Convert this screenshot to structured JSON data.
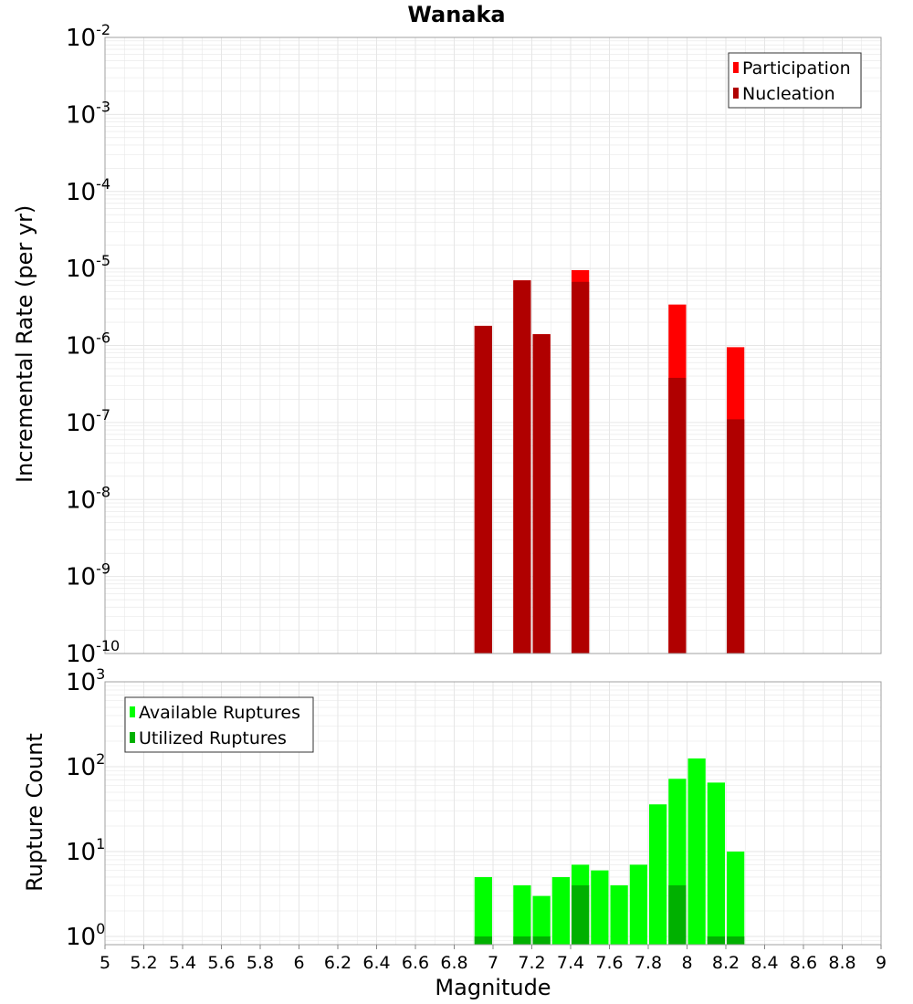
{
  "title": "Wanaka",
  "xlabel": "Magnitude",
  "x_ticks": [
    "5",
    "5.2",
    "5.4",
    "5.6",
    "5.8",
    "6",
    "6.2",
    "6.4",
    "6.6",
    "6.8",
    "7",
    "7.2",
    "7.4",
    "7.6",
    "7.8",
    "8",
    "8.2",
    "8.4",
    "8.6",
    "8.8",
    "9"
  ],
  "colors": {
    "participation": "#ff0000",
    "nucleation": "#b00000",
    "available": "#00ff00",
    "utilized": "#00b000",
    "grid": "#e6e6e6",
    "frame": "#a0a0a0"
  },
  "chart_data": [
    {
      "type": "bar",
      "ylabel": "Incremental Rate (per yr)",
      "yscale": "log",
      "ylim": [
        1e-10,
        0.01
      ],
      "xlim": [
        5,
        9
      ],
      "bin_width": 0.1,
      "grid": true,
      "y_ticks": [
        {
          "base": "10",
          "exp": "-10"
        },
        {
          "base": "10",
          "exp": "-9"
        },
        {
          "base": "10",
          "exp": "-8"
        },
        {
          "base": "10",
          "exp": "-7"
        },
        {
          "base": "10",
          "exp": "-6"
        },
        {
          "base": "10",
          "exp": "-5"
        },
        {
          "base": "10",
          "exp": "-4"
        },
        {
          "base": "10",
          "exp": "-3"
        },
        {
          "base": "10",
          "exp": "-2"
        }
      ],
      "legend": {
        "placement": "top-right",
        "entries": [
          "Participation",
          "Nucleation"
        ]
      },
      "series": [
        {
          "name": "Participation",
          "color": "participation",
          "x": [
            6.95,
            7.15,
            7.25,
            7.45,
            7.95,
            8.25
          ],
          "values": [
            1.8e-06,
            7e-06,
            1.4e-06,
            9.5e-06,
            3.4e-06,
            9.5e-07
          ]
        },
        {
          "name": "Nucleation",
          "color": "nucleation",
          "x": [
            6.95,
            7.15,
            7.25,
            7.45,
            7.95,
            8.25
          ],
          "values": [
            1.8e-06,
            7e-06,
            1.4e-06,
            6.7e-06,
            3.8e-07,
            1.1e-07
          ]
        }
      ]
    },
    {
      "type": "bar",
      "ylabel": "Rupture Count",
      "yscale": "log",
      "ylim": [
        0.8,
        1000
      ],
      "xlim": [
        5,
        9
      ],
      "bin_width": 0.1,
      "grid": true,
      "y_ticks": [
        {
          "base": "10",
          "exp": "0",
          "value": 1
        },
        {
          "base": "10",
          "exp": "1",
          "value": 10
        },
        {
          "base": "10",
          "exp": "2",
          "value": 100
        },
        {
          "base": "10",
          "exp": "3",
          "value": 1000
        }
      ],
      "legend": {
        "placement": "top-left",
        "entries": [
          "Available Ruptures",
          "Utilized Ruptures"
        ]
      },
      "series": [
        {
          "name": "Available Ruptures",
          "color": "available",
          "x": [
            6.95,
            7.15,
            7.25,
            7.35,
            7.45,
            7.55,
            7.65,
            7.75,
            7.85,
            7.95,
            8.05,
            8.15,
            8.25
          ],
          "values": [
            5,
            4,
            3,
            5,
            7,
            6,
            4,
            7,
            36,
            72,
            125,
            65,
            10
          ]
        },
        {
          "name": "Utilized Ruptures",
          "color": "utilized",
          "x": [
            6.95,
            7.15,
            7.25,
            7.45,
            7.95,
            8.15,
            8.25
          ],
          "values": [
            1,
            1,
            1,
            4,
            4,
            1,
            1
          ]
        }
      ]
    }
  ]
}
